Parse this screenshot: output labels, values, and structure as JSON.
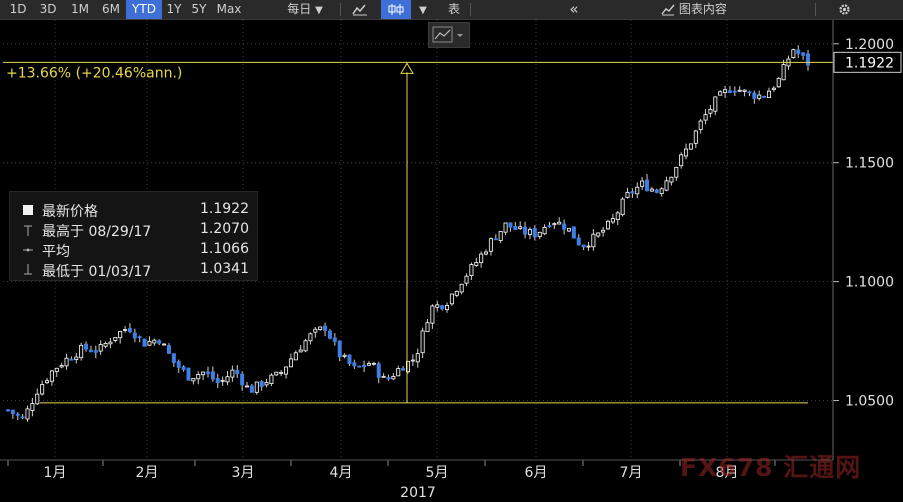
{
  "toolbar": {
    "periods": [
      {
        "label": "1D",
        "active": false
      },
      {
        "label": "3D",
        "active": false
      },
      {
        "label": "1M",
        "active": false
      },
      {
        "label": "6M",
        "active": false
      },
      {
        "label": "YTD",
        "active": true
      },
      {
        "label": "1Y",
        "active": false
      },
      {
        "label": "5Y",
        "active": false
      },
      {
        "label": "Max",
        "active": false
      }
    ],
    "frequency": "每日",
    "frequency_arrow": "▼",
    "chart_type_arrow": "▼",
    "table_label": "表",
    "collapse_label": "«",
    "chart_content_label": "图表内容",
    "settings_icon": "gear-icon"
  },
  "legend": {
    "rows": [
      {
        "label": "最新价格",
        "value": "1.1922"
      },
      {
        "label": "最高于 08/29/17",
        "value": "1.2070"
      },
      {
        "label": "平均",
        "value": "1.1066"
      },
      {
        "label": "最低于 01/03/17",
        "value": "1.0341"
      }
    ]
  },
  "annotation": {
    "text": "+13.66% (+20.46%ann.)"
  },
  "last_price_tag": "1.1922",
  "watermark": "FX678 汇通网",
  "colors": {
    "up": "#ffffff",
    "down": "#3d7fe6",
    "hline": "#e8d84a",
    "accent": "#3d6fd6"
  },
  "chart_data": {
    "type": "candlestick",
    "y_ticks": [
      "1.2000",
      "1.1500",
      "1.1000",
      "1.0500"
    ],
    "ylim": [
      1.025,
      1.21
    ],
    "x_ticks": [
      "1月",
      "2月",
      "3月",
      "4月",
      "5月",
      "6月",
      "7月",
      "8月"
    ],
    "x_year": "2017",
    "hline_high": 1.1922,
    "hline_low": 1.049,
    "price_path": [
      1.046,
      1.042,
      1.055,
      1.063,
      1.068,
      1.072,
      1.071,
      1.077,
      1.081,
      1.074,
      1.076,
      1.066,
      1.06,
      1.062,
      1.057,
      1.063,
      1.054,
      1.058,
      1.061,
      1.07,
      1.077,
      1.081,
      1.069,
      1.063,
      1.066,
      1.058,
      1.064,
      1.068,
      1.089,
      1.091,
      1.1,
      1.108,
      1.117,
      1.124,
      1.121,
      1.12,
      1.126,
      1.123,
      1.115,
      1.119,
      1.125,
      1.136,
      1.141,
      1.138,
      1.146,
      1.156,
      1.168,
      1.177,
      1.182,
      1.179,
      1.178,
      1.184,
      1.198,
      1.192
    ]
  }
}
